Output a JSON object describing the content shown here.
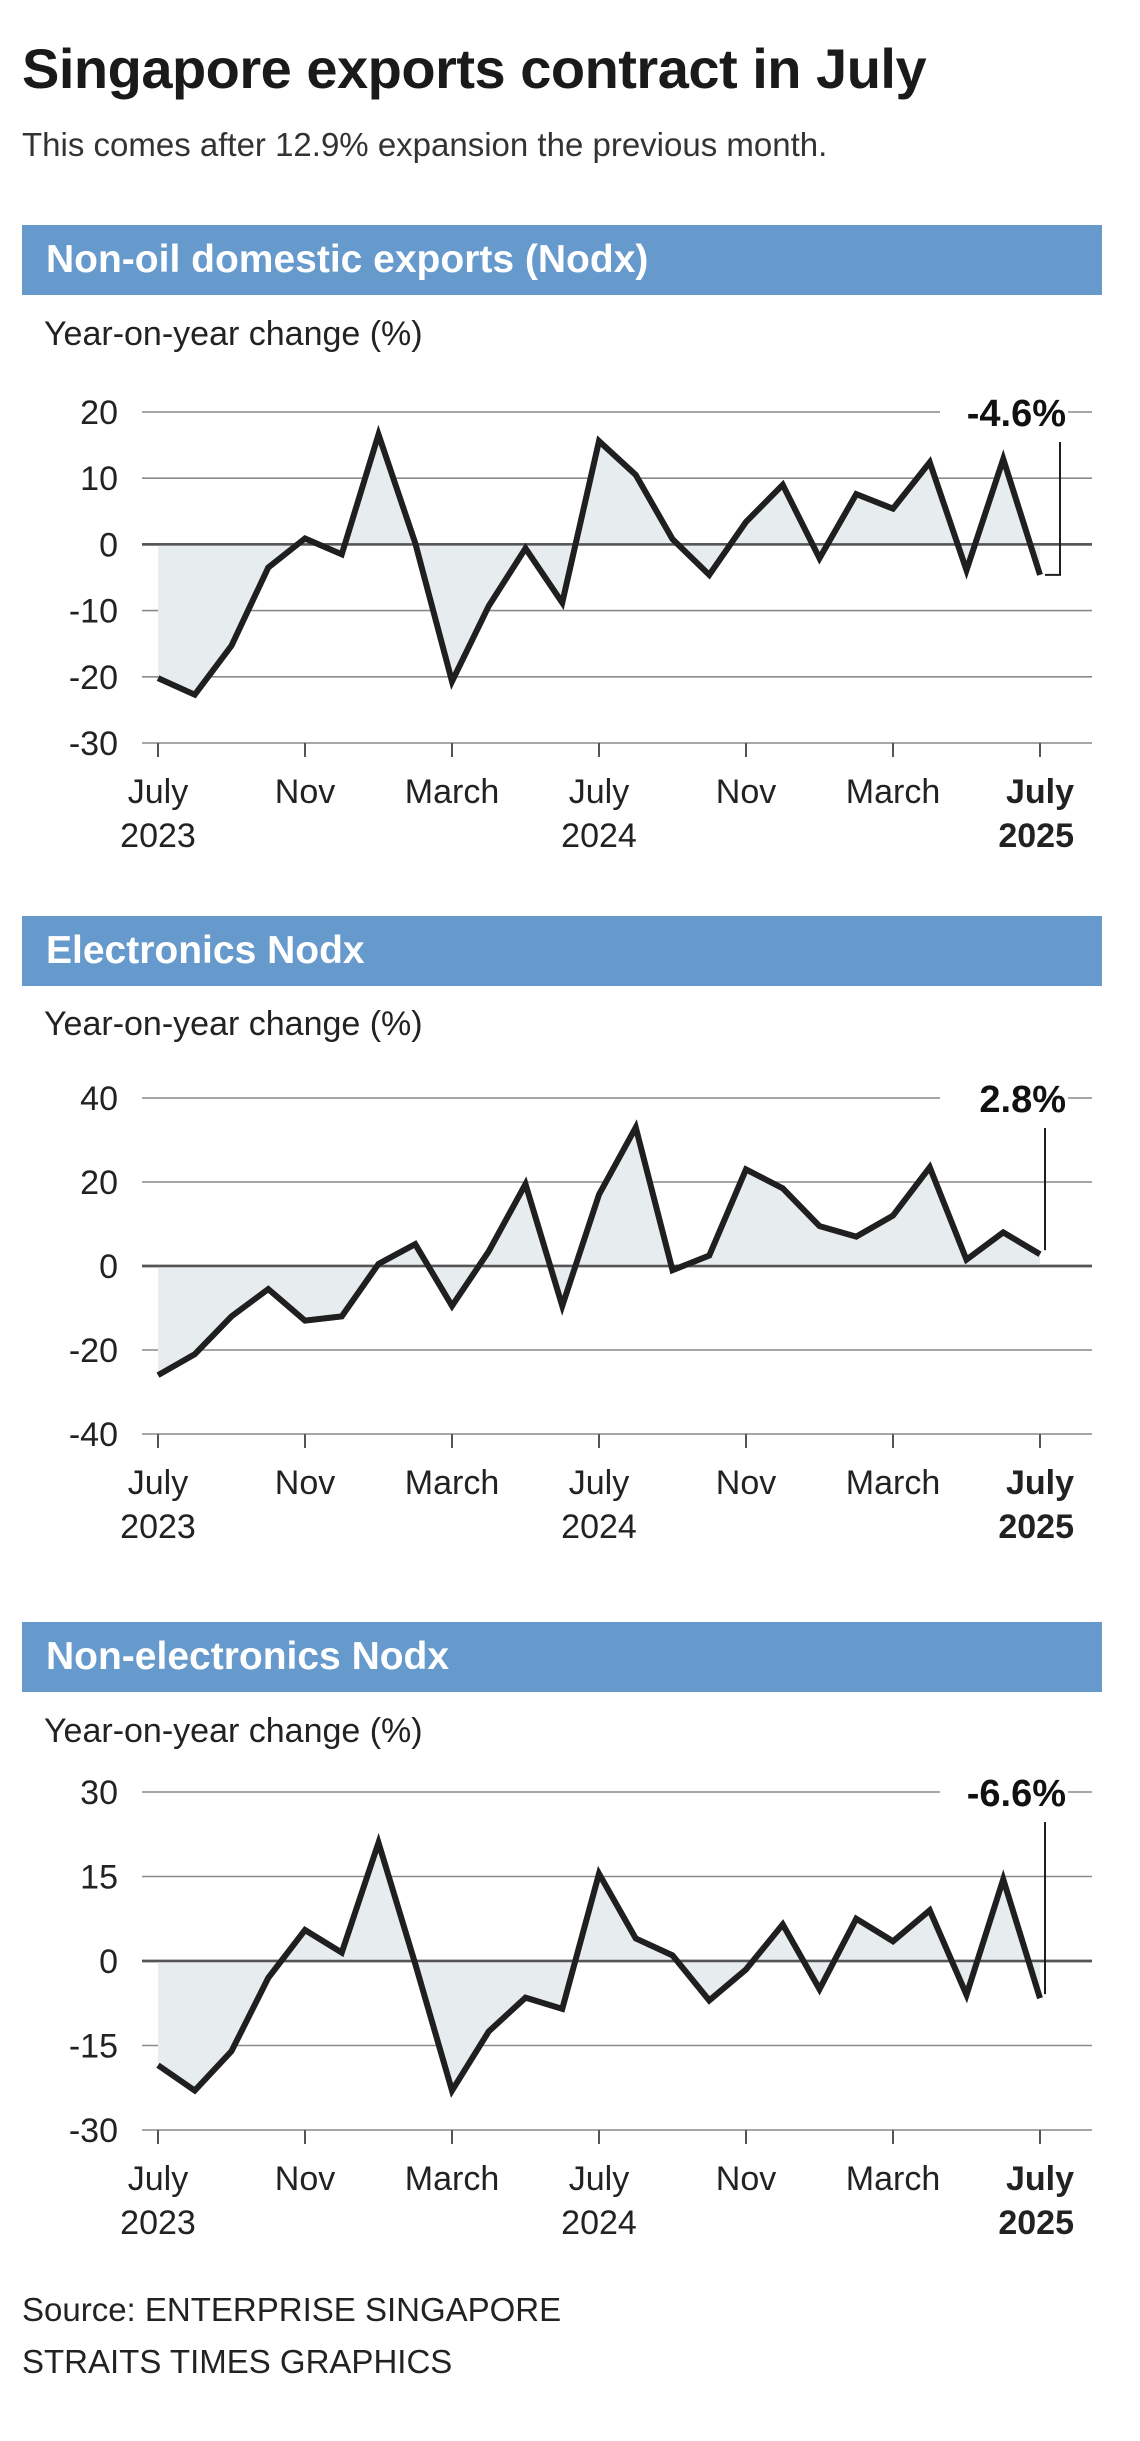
{
  "title": "Singapore exports contract in July",
  "subtitle": "This comes after 12.9% expansion the previous month.",
  "colors": {
    "header_bg": "#6699cc",
    "line": "#1f1f1f",
    "fill": "#e7ecee",
    "grid": "#8a8a8a",
    "zero": "#555555"
  },
  "chart_data": [
    {
      "type": "area",
      "title": "Non-oil domestic exports (Nodx)",
      "ylabel": "Year-on-year change (%)",
      "xlabel": "",
      "ylim": [
        -30,
        20
      ],
      "yticks": [
        20,
        10,
        0,
        -10,
        -20,
        -30
      ],
      "xlim": [
        0,
        24.3
      ],
      "xticks": [
        {
          "x": 0,
          "line1": "July",
          "line2": "2023",
          "bold": false
        },
        {
          "x": 4,
          "line1": "Nov",
          "line2": "",
          "bold": false
        },
        {
          "x": 8,
          "line1": "March",
          "line2": "",
          "bold": false
        },
        {
          "x": 12,
          "line1": "July",
          "line2": "2024",
          "bold": false
        },
        {
          "x": 16,
          "line1": "Nov",
          "line2": "",
          "bold": false
        },
        {
          "x": 20,
          "line1": "March",
          "line2": "",
          "bold": false
        },
        {
          "x": 24,
          "line1": "July",
          "line2": "2025",
          "bold": true
        }
      ],
      "categories": [
        "Jul 2023",
        "Aug 2023",
        "Sep 2023",
        "Oct 2023",
        "Nov 2023",
        "Dec 2023",
        "Jan 2024",
        "Feb 2024",
        "Mar 2024",
        "Apr 2024",
        "May 2024",
        "Jun 2024",
        "Jul 2024",
        "Aug 2024",
        "Sep 2024",
        "Oct 2024",
        "Nov 2024",
        "Dec 2024",
        "Jan 2025",
        "Feb 2025",
        "Mar 2025",
        "Apr 2025",
        "May 2025",
        "Jun 2025",
        "Jul 2025"
      ],
      "values": [
        -20.2,
        -22.7,
        -15.3,
        -3.5,
        0.9,
        -1.5,
        16.6,
        0.2,
        -20.7,
        -9.3,
        -0.6,
        -8.8,
        15.6,
        10.5,
        0.8,
        -4.6,
        3.4,
        9.0,
        -2.1,
        7.6,
        5.4,
        12.4,
        -3.9,
        12.9,
        -4.6
      ],
      "annotation": "-4.6%"
    },
    {
      "type": "area",
      "title": "Electronics Nodx",
      "ylabel": "Year-on-year change (%)",
      "xlabel": "",
      "ylim": [
        -40,
        40
      ],
      "yticks": [
        40,
        20,
        0,
        -20,
        -40
      ],
      "xlim": [
        0,
        24.3
      ],
      "xticks": [
        {
          "x": 0,
          "line1": "July",
          "line2": "2023",
          "bold": false
        },
        {
          "x": 4,
          "line1": "Nov",
          "line2": "",
          "bold": false
        },
        {
          "x": 8,
          "line1": "March",
          "line2": "",
          "bold": false
        },
        {
          "x": 12,
          "line1": "July",
          "line2": "2024",
          "bold": false
        },
        {
          "x": 16,
          "line1": "Nov",
          "line2": "",
          "bold": false
        },
        {
          "x": 20,
          "line1": "March",
          "line2": "",
          "bold": false
        },
        {
          "x": 24,
          "line1": "July",
          "line2": "2025",
          "bold": true
        }
      ],
      "categories": [
        "Jul 2023",
        "Aug 2023",
        "Sep 2023",
        "Oct 2023",
        "Nov 2023",
        "Dec 2023",
        "Jan 2024",
        "Feb 2024",
        "Mar 2024",
        "Apr 2024",
        "May 2024",
        "Jun 2024",
        "Jul 2024",
        "Aug 2024",
        "Sep 2024",
        "Oct 2024",
        "Nov 2024",
        "Dec 2024",
        "Jan 2025",
        "Feb 2025",
        "Mar 2025",
        "Apr 2025",
        "May 2025",
        "Jun 2025",
        "Jul 2025"
      ],
      "values": [
        -26.0,
        -21.0,
        -12.0,
        -5.5,
        -13.0,
        -12.0,
        0.5,
        5.2,
        -9.5,
        3.5,
        19.5,
        -9.5,
        17.0,
        33.0,
        -1.0,
        2.5,
        23.0,
        18.5,
        9.5,
        7.0,
        12.0,
        23.5,
        1.5,
        8.0,
        2.8
      ],
      "annotation": "2.8%"
    },
    {
      "type": "area",
      "title": "Non-electronics Nodx",
      "ylabel": "Year-on-year change (%)",
      "xlabel": "",
      "ylim": [
        -30,
        30
      ],
      "yticks": [
        30,
        15,
        0,
        -15,
        -30
      ],
      "xlim": [
        0,
        24.3
      ],
      "xticks": [
        {
          "x": 0,
          "line1": "July",
          "line2": "2023",
          "bold": false
        },
        {
          "x": 4,
          "line1": "Nov",
          "line2": "",
          "bold": false
        },
        {
          "x": 8,
          "line1": "March",
          "line2": "",
          "bold": false
        },
        {
          "x": 12,
          "line1": "July",
          "line2": "2024",
          "bold": false
        },
        {
          "x": 16,
          "line1": "Nov",
          "line2": "",
          "bold": false
        },
        {
          "x": 20,
          "line1": "March",
          "line2": "",
          "bold": false
        },
        {
          "x": 24,
          "line1": "July",
          "line2": "2025",
          "bold": true
        }
      ],
      "categories": [
        "Jul 2023",
        "Aug 2023",
        "Sep 2023",
        "Oct 2023",
        "Nov 2023",
        "Dec 2023",
        "Jan 2024",
        "Feb 2024",
        "Mar 2024",
        "Apr 2024",
        "May 2024",
        "Jun 2024",
        "Jul 2024",
        "Aug 2024",
        "Sep 2024",
        "Oct 2024",
        "Nov 2024",
        "Dec 2024",
        "Jan 2025",
        "Feb 2025",
        "Mar 2025",
        "Apr 2025",
        "May 2025",
        "Jun 2025",
        "Jul 2025"
      ],
      "values": [
        -18.5,
        -23.0,
        -16.0,
        -3.0,
        5.5,
        1.5,
        21.0,
        -0.5,
        -23.0,
        -12.5,
        -6.5,
        -8.5,
        15.5,
        4.0,
        1.0,
        -7.0,
        -1.5,
        6.5,
        -5.0,
        7.5,
        3.5,
        9.0,
        -6.0,
        14.5,
        -6.6
      ],
      "annotation": "-6.6%"
    }
  ],
  "source": {
    "line1": "Source: ENTERPRISE SINGAPORE",
    "line2": "STRAITS TIMES GRAPHICS"
  }
}
